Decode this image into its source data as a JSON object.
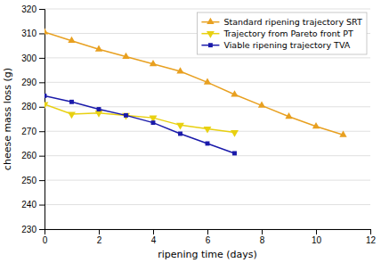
{
  "chart_data": {
    "type": "line",
    "xlabel": "ripening time (days)",
    "ylabel": "cheese mass loss (g)",
    "series": [
      {
        "name": "Standard ripening trajectory SRT",
        "color": "#E8A020",
        "marker": "triangle-up",
        "x": [
          0,
          1,
          2,
          3,
          4,
          5,
          6,
          7,
          8,
          9,
          10,
          11
        ],
        "values": [
          310.5,
          307.0,
          303.5,
          300.5,
          297.5,
          294.5,
          290.0,
          285.0,
          280.5,
          276.0,
          272.0,
          268.5
        ]
      },
      {
        "name": "Trajectory from Pareto front PT",
        "color": "#E8D010",
        "marker": "triangle-down",
        "x": [
          0,
          1,
          2,
          3,
          4,
          5,
          6,
          7
        ],
        "values": [
          281.0,
          277.0,
          277.5,
          276.5,
          275.5,
          272.5,
          271.0,
          269.5
        ]
      },
      {
        "name": "Viable ripening trajectory TVA",
        "color": "#1a1aaa",
        "marker": "square",
        "x": [
          0,
          1,
          2,
          3,
          4,
          5,
          6,
          7
        ],
        "values": [
          284.5,
          282.0,
          279.0,
          276.5,
          273.5,
          269.0,
          265.0,
          261.0
        ]
      }
    ],
    "xlim": [
      0,
      12
    ],
    "ylim": [
      230,
      320
    ],
    "xticks": [
      0,
      2,
      4,
      6,
      8,
      10,
      12
    ],
    "yticks": [
      230,
      240,
      250,
      260,
      270,
      280,
      290,
      300,
      310,
      320
    ],
    "grid": "y",
    "legend": "upper right"
  }
}
